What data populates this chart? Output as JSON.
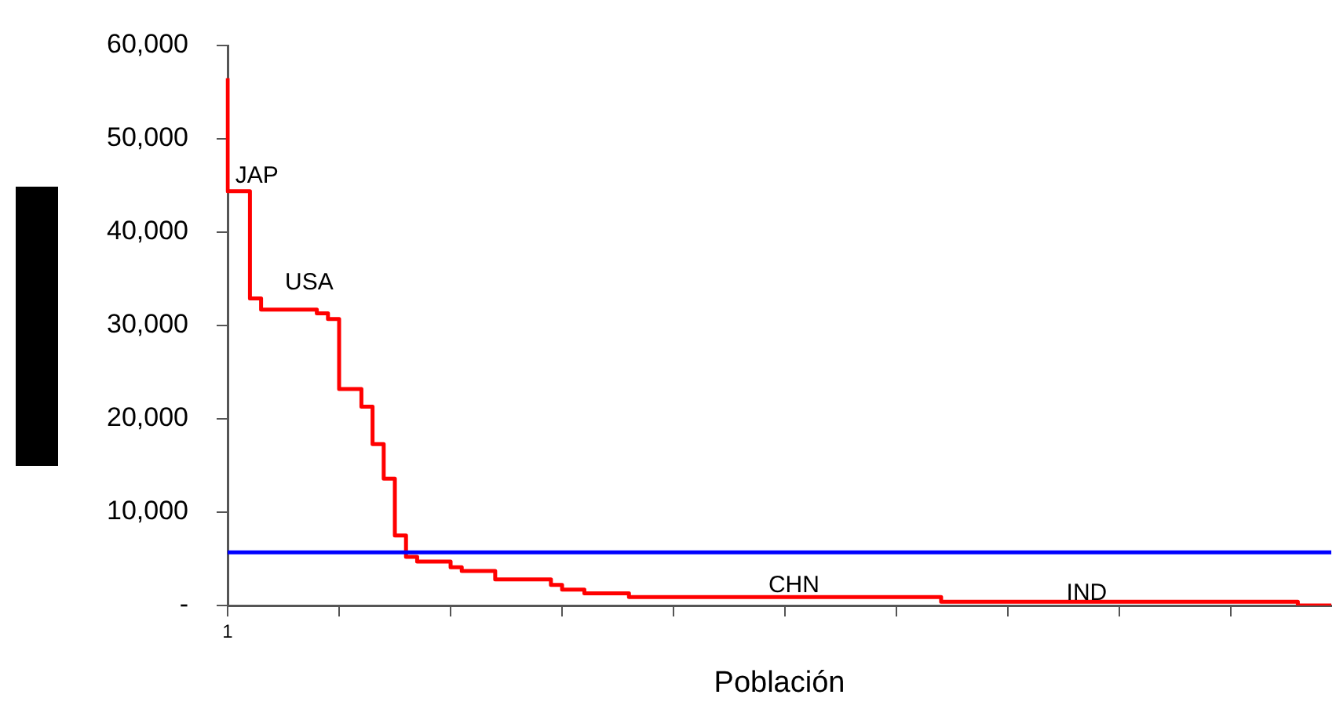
{
  "chart_data": {
    "type": "step",
    "xlabel": "Población",
    "categories": [
      "1",
      null,
      null,
      null,
      null,
      null,
      null,
      null,
      null,
      null,
      null,
      null,
      null,
      null,
      null,
      null,
      null,
      null,
      null,
      null,
      null,
      null,
      null,
      null,
      null,
      null,
      null,
      null,
      null,
      null,
      null,
      null,
      null,
      null,
      null,
      null,
      null,
      null,
      null,
      null,
      null,
      null,
      null,
      null,
      null,
      null,
      null,
      null,
      null,
      null,
      null,
      null,
      null,
      null,
      null,
      null,
      null,
      null,
      null,
      null,
      null,
      null,
      null,
      null,
      null,
      null,
      null,
      null,
      null,
      null,
      null,
      null,
      null,
      null,
      null,
      null,
      null,
      null,
      null,
      null,
      null,
      null,
      null,
      null,
      null,
      null,
      null,
      null,
      null,
      null,
      null,
      null,
      null,
      null,
      null,
      null,
      null,
      null,
      null,
      null
    ],
    "values": [
      56500,
      44400,
      44400,
      32900,
      31700,
      31700,
      31700,
      31700,
      31700,
      31300,
      30700,
      23200,
      23200,
      21300,
      17300,
      13600,
      7500,
      5200,
      4700,
      4700,
      4700,
      4100,
      3700,
      3700,
      3700,
      2800,
      2800,
      2800,
      2800,
      2800,
      2200,
      1700,
      1700,
      1300,
      1300,
      1300,
      1300,
      900,
      900,
      900,
      900,
      900,
      900,
      900,
      900,
      900,
      900,
      900,
      900,
      900,
      900,
      900,
      900,
      900,
      900,
      900,
      900,
      900,
      900,
      900,
      900,
      900,
      900,
      900,
      900,
      400,
      400,
      400,
      400,
      400,
      400,
      400,
      400,
      400,
      400,
      400,
      400,
      400,
      400,
      400,
      400,
      400,
      400,
      400,
      400,
      400,
      400,
      400,
      400,
      400,
      400,
      400,
      400,
      400,
      400,
      400,
      400,
      0,
      0,
      0
    ],
    "color": "#ff0000",
    "ylim": [
      0,
      60000
    ],
    "yticks": [
      {
        "value": 0,
        "label": "-"
      },
      {
        "value": 10000,
        "label": "10,000"
      },
      {
        "value": 20000,
        "label": "20,000"
      },
      {
        "value": 30000,
        "label": "30,000"
      },
      {
        "value": 40000,
        "label": "40,000"
      },
      {
        "value": 50000,
        "label": "50,000"
      },
      {
        "value": 60000,
        "label": "60,000"
      }
    ],
    "ref_lines": [
      {
        "axis": "y",
        "value": 5700,
        "color": "#0000ff"
      }
    ],
    "annotations": [
      "JAP",
      "USA",
      "CHN",
      "IND"
    ],
    "grid": false,
    "legend": false,
    "marker": "none"
  }
}
